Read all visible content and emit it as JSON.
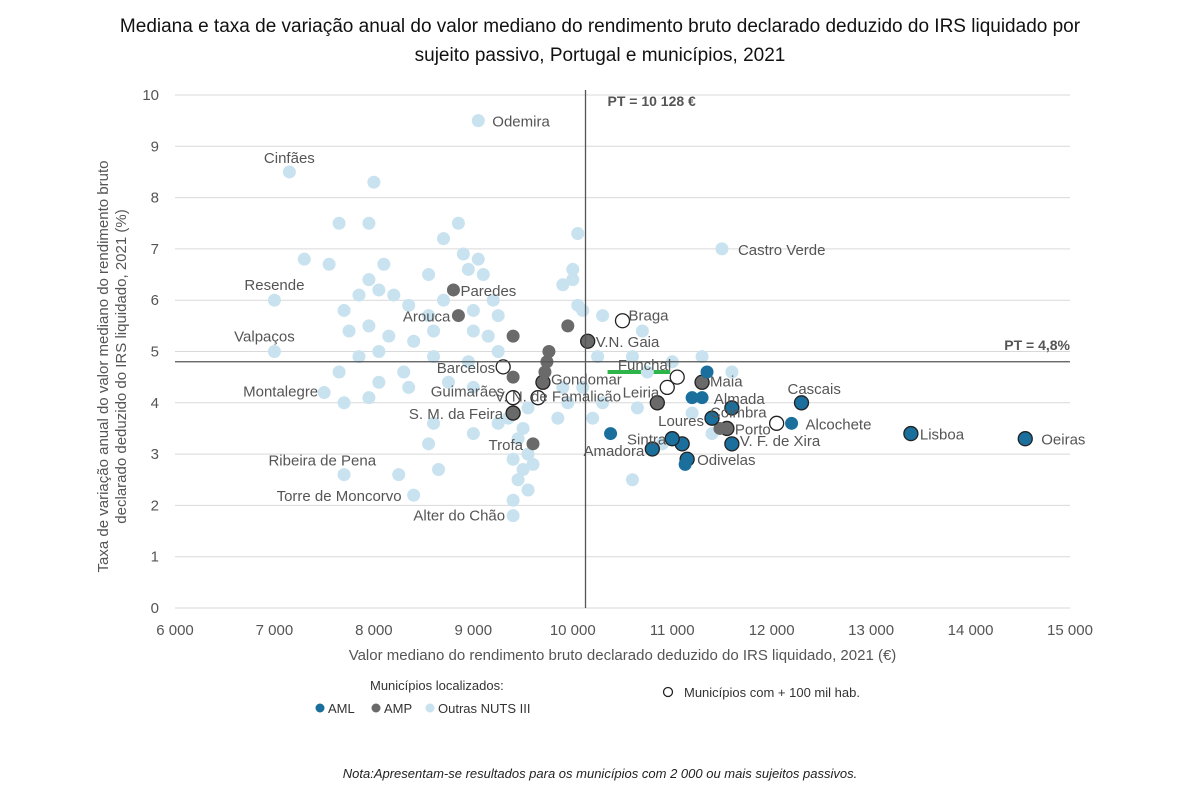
{
  "title_lines": [
    "Mediana e taxa de variação anual do valor mediano do rendimento bruto declarado deduzido do IRS liquidado por",
    "sujeito passivo, Portugal e municípios, 2021"
  ],
  "note": "Nota:Apresentam-se resultados para os municípios com 2 000 ou mais sujeitos passivos.",
  "chart_data": {
    "type": "scatter",
    "title": "Mediana e taxa de variação anual do valor mediano do rendimento bruto declarado deduzido do IRS liquidado por sujeito passivo, Portugal e municípios, 2021",
    "xlabel": "Valor mediano do rendimento bruto declarado deduzido do IRS liquidado, 2021 (€)",
    "ylabel_lines": [
      "Taxa de variação anual do valor mediano do rendimento bruto",
      "declarado deduzido do IRS liquidado, 2021 (%)"
    ],
    "xlim": [
      6000,
      15000
    ],
    "ylim": [
      0,
      10
    ],
    "x_ticks": [
      6000,
      7000,
      8000,
      9000,
      10000,
      11000,
      12000,
      13000,
      14000,
      15000
    ],
    "x_tick_labels": [
      "6 000",
      "7 000",
      "8 000",
      "9 000",
      "10 000",
      "11 000",
      "12 000",
      "13 000",
      "14 000",
      "15 000"
    ],
    "y_ticks": [
      0,
      1,
      2,
      3,
      4,
      5,
      6,
      7,
      8,
      9,
      10
    ],
    "y_tick_labels": [
      "0",
      "1",
      "2",
      "3",
      "4",
      "5",
      "6",
      "7",
      "8",
      "9",
      "10"
    ],
    "grid": "horizontal",
    "reference_lines": [
      {
        "orientation": "vertical",
        "value": 10128,
        "label": "PT = 10 128 €"
      },
      {
        "orientation": "horizontal",
        "value": 4.8,
        "label": "PT = 4,8%"
      }
    ],
    "legend": {
      "title": "Municípios localizados:",
      "entries": [
        "AML",
        "AMP",
        "Outras NUTS III"
      ],
      "marker_note": "Municípios com + 100 mil hab.",
      "placement": "bottom"
    },
    "colors": {
      "AML": "#1a6f9c",
      "AMP": "#6a6a6a",
      "Outras": "#c8e2ef",
      "large_outline": "#222222",
      "pt_line": "#555555",
      "highlight": "#2db54a"
    },
    "highlight_segment": {
      "x": [
        10350,
        10980
      ],
      "y": 4.6
    },
    "series": [
      {
        "name": "AML",
        "points": [
          {
            "x": 14550,
            "y": 3.3,
            "label": "Oeiras",
            "large": true
          },
          {
            "x": 13400,
            "y": 3.4,
            "label": "Lisboa",
            "large": true
          },
          {
            "x": 12300,
            "y": 4.0,
            "label": "Cascais",
            "large": true
          },
          {
            "x": 12200,
            "y": 3.6,
            "label": "Alcochete",
            "large": false
          },
          {
            "x": 11600,
            "y": 3.9,
            "label": "Almada",
            "large": true
          },
          {
            "x": 11600,
            "y": 3.2,
            "label": "V. F. de Xira",
            "large": true
          },
          {
            "x": 11400,
            "y": 3.7,
            "label": "Loures",
            "large": true
          },
          {
            "x": 11350,
            "y": 4.6,
            "label": "",
            "large": false
          },
          {
            "x": 11300,
            "y": 4.1,
            "label": "",
            "large": false
          },
          {
            "x": 11200,
            "y": 4.1,
            "label": "",
            "large": false
          },
          {
            "x": 11150,
            "y": 2.9,
            "label": "Odivelas",
            "large": true
          },
          {
            "x": 11100,
            "y": 3.2,
            "label": "",
            "large": true
          },
          {
            "x": 11000,
            "y": 3.3,
            "label": "Sintra",
            "large": true
          },
          {
            "x": 10800,
            "y": 3.1,
            "label": "Amadora",
            "large": true
          },
          {
            "x": 11130,
            "y": 2.8,
            "label": "",
            "large": false
          },
          {
            "x": 10380,
            "y": 3.4,
            "label": "",
            "large": false
          }
        ]
      },
      {
        "name": "AMP",
        "points": [
          {
            "x": 11550,
            "y": 3.5,
            "label": "Porto",
            "large": true
          },
          {
            "x": 11480,
            "y": 3.5,
            "label": "",
            "large": false
          },
          {
            "x": 11300,
            "y": 4.4,
            "label": "Maia",
            "large": true
          },
          {
            "x": 10850,
            "y": 4.0,
            "label": "",
            "large": true
          },
          {
            "x": 10150,
            "y": 5.2,
            "label": "V.N. Gaia",
            "large": true
          },
          {
            "x": 9950,
            "y": 5.5,
            "label": "",
            "large": false
          },
          {
            "x": 9700,
            "y": 4.4,
            "label": "Gondomar",
            "large": true
          },
          {
            "x": 9720,
            "y": 4.6,
            "label": "",
            "large": false
          },
          {
            "x": 9740,
            "y": 4.8,
            "label": "",
            "large": false
          },
          {
            "x": 9760,
            "y": 5.0,
            "label": "",
            "large": false
          },
          {
            "x": 9400,
            "y": 5.3,
            "label": "",
            "large": false
          },
          {
            "x": 9400,
            "y": 3.8,
            "label": "S. M. da Feira",
            "large": true
          },
          {
            "x": 9400,
            "y": 4.5,
            "label": "",
            "large": false
          },
          {
            "x": 9600,
            "y": 3.2,
            "label": "Trofa",
            "large": false
          },
          {
            "x": 8800,
            "y": 6.2,
            "label": "Paredes",
            "large": false
          },
          {
            "x": 8850,
            "y": 5.7,
            "label": "Arouca",
            "large": false
          }
        ]
      },
      {
        "name": "Outras NUTS III",
        "points": [
          {
            "x": 9050,
            "y": 9.5,
            "label": "Odemira",
            "large": false
          },
          {
            "x": 7150,
            "y": 8.5,
            "label": "Cinfães",
            "large": false
          },
          {
            "x": 11500,
            "y": 7.0,
            "label": "Castro Verde",
            "large": false
          },
          {
            "x": 7000,
            "y": 6.0,
            "label": "Resende",
            "large": false
          },
          {
            "x": 7000,
            "y": 5.0,
            "label": "Valpaços",
            "large": false
          },
          {
            "x": 7500,
            "y": 4.2,
            "label": "Montalegre",
            "large": false
          },
          {
            "x": 7700,
            "y": 2.6,
            "label": "Ribeira de Pena",
            "large": false
          },
          {
            "x": 8400,
            "y": 2.2,
            "label": "Torre de Moncorvo",
            "large": false
          },
          {
            "x": 9400,
            "y": 1.8,
            "label": "Alter do Chão",
            "large": false
          },
          {
            "x": 10500,
            "y": 5.6,
            "label": "Braga",
            "large": true
          },
          {
            "x": 10950,
            "y": 4.3,
            "label": "Leiria",
            "large": true
          },
          {
            "x": 11050,
            "y": 4.5,
            "label": "Funchal",
            "large": true
          },
          {
            "x": 9300,
            "y": 4.7,
            "label": "Barcelos",
            "large": true
          },
          {
            "x": 9400,
            "y": 4.1,
            "label": "Guimarães",
            "large": true
          },
          {
            "x": 9650,
            "y": 4.1,
            "label": "V. N. de Famalicão",
            "large": true
          },
          {
            "x": 12050,
            "y": 3.6,
            "label": "Coimbra",
            "large": true
          },
          {
            "x": 8000,
            "y": 8.3,
            "label": "",
            "large": false
          },
          {
            "x": 7650,
            "y": 7.5,
            "label": "",
            "large": false
          },
          {
            "x": 7950,
            "y": 7.5,
            "label": "",
            "large": false
          },
          {
            "x": 8850,
            "y": 7.5,
            "label": "",
            "large": false
          },
          {
            "x": 8700,
            "y": 7.2,
            "label": "",
            "large": false
          },
          {
            "x": 10050,
            "y": 7.3,
            "label": "",
            "large": false
          },
          {
            "x": 7300,
            "y": 6.8,
            "label": "",
            "large": false
          },
          {
            "x": 7550,
            "y": 6.7,
            "label": "",
            "large": false
          },
          {
            "x": 8100,
            "y": 6.7,
            "label": "",
            "large": false
          },
          {
            "x": 8550,
            "y": 6.5,
            "label": "",
            "large": false
          },
          {
            "x": 8900,
            "y": 6.9,
            "label": "",
            "large": false
          },
          {
            "x": 8950,
            "y": 6.6,
            "label": "",
            "large": false
          },
          {
            "x": 9050,
            "y": 6.8,
            "label": "",
            "large": false
          },
          {
            "x": 9100,
            "y": 6.5,
            "label": "",
            "large": false
          },
          {
            "x": 7950,
            "y": 6.4,
            "label": "",
            "large": false
          },
          {
            "x": 8050,
            "y": 6.2,
            "label": "",
            "large": false
          },
          {
            "x": 8200,
            "y": 6.1,
            "label": "",
            "large": false
          },
          {
            "x": 7850,
            "y": 6.1,
            "label": "",
            "large": false
          },
          {
            "x": 8700,
            "y": 6.0,
            "label": "",
            "large": false
          },
          {
            "x": 9200,
            "y": 6.0,
            "label": "",
            "large": false
          },
          {
            "x": 7700,
            "y": 5.8,
            "label": "",
            "large": false
          },
          {
            "x": 8350,
            "y": 5.9,
            "label": "",
            "large": false
          },
          {
            "x": 8550,
            "y": 5.7,
            "label": "",
            "large": false
          },
          {
            "x": 9000,
            "y": 5.8,
            "label": "",
            "large": false
          },
          {
            "x": 9250,
            "y": 5.7,
            "label": "",
            "large": false
          },
          {
            "x": 7750,
            "y": 5.4,
            "label": "",
            "large": false
          },
          {
            "x": 7950,
            "y": 5.5,
            "label": "",
            "large": false
          },
          {
            "x": 8150,
            "y": 5.3,
            "label": "",
            "large": false
          },
          {
            "x": 8400,
            "y": 5.2,
            "label": "",
            "large": false
          },
          {
            "x": 8600,
            "y": 5.4,
            "label": "",
            "large": false
          },
          {
            "x": 9000,
            "y": 5.4,
            "label": "",
            "large": false
          },
          {
            "x": 9150,
            "y": 5.3,
            "label": "",
            "large": false
          },
          {
            "x": 7850,
            "y": 4.9,
            "label": "",
            "large": false
          },
          {
            "x": 8050,
            "y": 5.0,
            "label": "",
            "large": false
          },
          {
            "x": 8300,
            "y": 4.6,
            "label": "",
            "large": false
          },
          {
            "x": 8600,
            "y": 4.9,
            "label": "",
            "large": false
          },
          {
            "x": 8950,
            "y": 4.8,
            "label": "",
            "large": false
          },
          {
            "x": 9250,
            "y": 5.0,
            "label": "",
            "large": false
          },
          {
            "x": 7650,
            "y": 4.6,
            "label": "",
            "large": false
          },
          {
            "x": 8050,
            "y": 4.4,
            "label": "",
            "large": false
          },
          {
            "x": 8350,
            "y": 4.3,
            "label": "",
            "large": false
          },
          {
            "x": 8750,
            "y": 4.4,
            "label": "",
            "large": false
          },
          {
            "x": 9000,
            "y": 4.3,
            "label": "",
            "large": false
          },
          {
            "x": 7700,
            "y": 4.0,
            "label": "",
            "large": false
          },
          {
            "x": 7950,
            "y": 4.1,
            "label": "",
            "large": false
          },
          {
            "x": 8600,
            "y": 3.6,
            "label": "",
            "large": false
          },
          {
            "x": 9000,
            "y": 3.4,
            "label": "",
            "large": false
          },
          {
            "x": 9250,
            "y": 3.6,
            "label": "",
            "large": false
          },
          {
            "x": 8550,
            "y": 3.2,
            "label": "",
            "large": false
          },
          {
            "x": 8650,
            "y": 2.7,
            "label": "",
            "large": false
          },
          {
            "x": 8250,
            "y": 2.6,
            "label": "",
            "large": false
          },
          {
            "x": 9500,
            "y": 3.5,
            "label": "",
            "large": false
          },
          {
            "x": 9450,
            "y": 3.3,
            "label": "",
            "large": false
          },
          {
            "x": 9550,
            "y": 3.0,
            "label": "",
            "large": false
          },
          {
            "x": 9400,
            "y": 2.9,
            "label": "",
            "large": false
          },
          {
            "x": 9500,
            "y": 2.7,
            "label": "",
            "large": false
          },
          {
            "x": 9450,
            "y": 2.5,
            "label": "",
            "large": false
          },
          {
            "x": 9550,
            "y": 2.3,
            "label": "",
            "large": false
          },
          {
            "x": 9400,
            "y": 2.1,
            "label": "",
            "large": false
          },
          {
            "x": 9600,
            "y": 2.8,
            "label": "",
            "large": false
          },
          {
            "x": 9350,
            "y": 3.7,
            "label": "",
            "large": false
          },
          {
            "x": 9550,
            "y": 3.9,
            "label": "",
            "large": false
          },
          {
            "x": 9850,
            "y": 3.7,
            "label": "",
            "large": false
          },
          {
            "x": 9900,
            "y": 4.3,
            "label": "",
            "large": false
          },
          {
            "x": 9950,
            "y": 4.0,
            "label": "",
            "large": false
          },
          {
            "x": 10000,
            "y": 6.4,
            "label": "",
            "large": false
          },
          {
            "x": 10000,
            "y": 6.6,
            "label": "",
            "large": false
          },
          {
            "x": 9900,
            "y": 6.3,
            "label": "",
            "large": false
          },
          {
            "x": 10050,
            "y": 5.9,
            "label": "",
            "large": false
          },
          {
            "x": 10100,
            "y": 5.8,
            "label": "",
            "large": false
          },
          {
            "x": 10300,
            "y": 5.7,
            "label": "",
            "large": false
          },
          {
            "x": 10700,
            "y": 5.4,
            "label": "",
            "large": false
          },
          {
            "x": 10250,
            "y": 4.9,
            "label": "",
            "large": false
          },
          {
            "x": 10100,
            "y": 4.3,
            "label": "",
            "large": false
          },
          {
            "x": 10300,
            "y": 4.0,
            "label": "",
            "large": false
          },
          {
            "x": 10200,
            "y": 3.7,
            "label": "",
            "large": false
          },
          {
            "x": 10600,
            "y": 4.9,
            "label": "",
            "large": false
          },
          {
            "x": 10750,
            "y": 4.6,
            "label": "",
            "large": false
          },
          {
            "x": 11000,
            "y": 4.8,
            "label": "",
            "large": false
          },
          {
            "x": 11300,
            "y": 4.9,
            "label": "",
            "large": false
          },
          {
            "x": 11600,
            "y": 4.6,
            "label": "",
            "large": false
          },
          {
            "x": 10650,
            "y": 3.9,
            "label": "",
            "large": false
          },
          {
            "x": 10600,
            "y": 2.5,
            "label": "",
            "large": false
          },
          {
            "x": 10900,
            "y": 3.2,
            "label": "",
            "large": false
          },
          {
            "x": 11200,
            "y": 3.8,
            "label": "",
            "large": false
          },
          {
            "x": 11400,
            "y": 3.4,
            "label": "",
            "large": false
          }
        ]
      }
    ]
  }
}
